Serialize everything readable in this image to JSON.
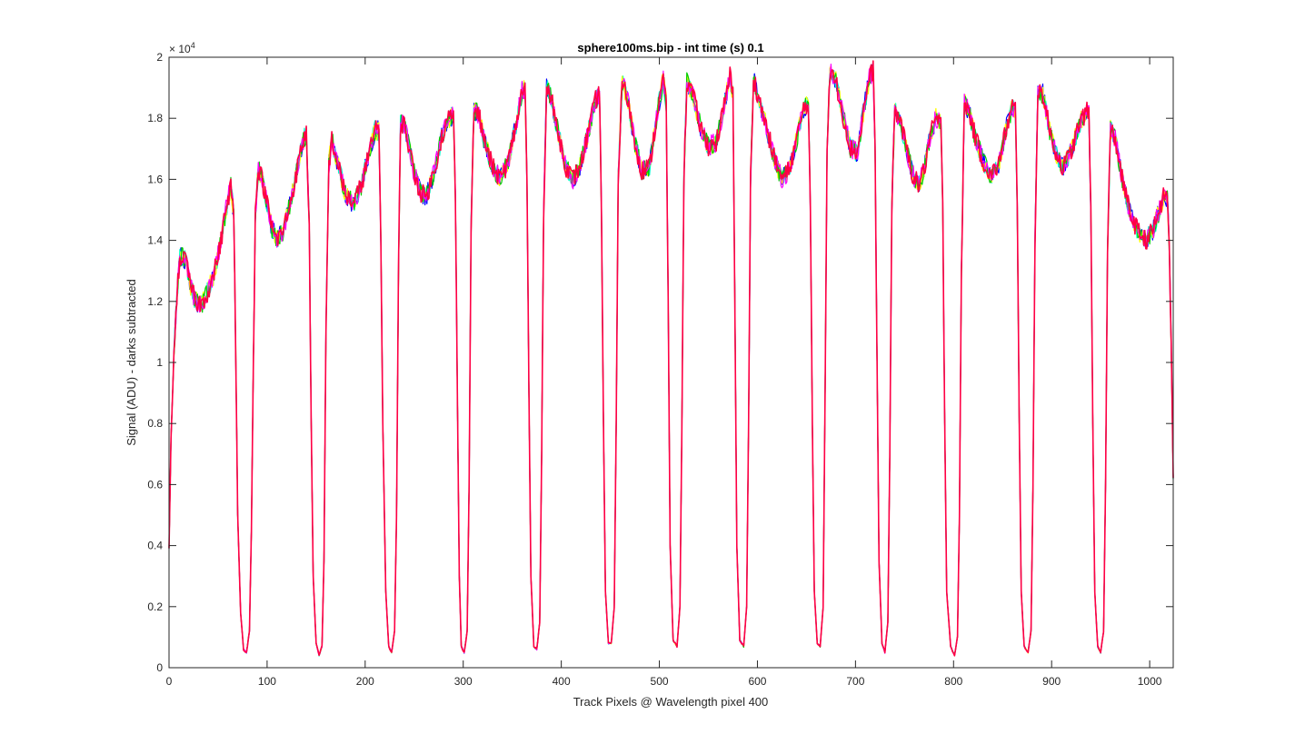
{
  "chart_data": {
    "type": "line",
    "title": "sphere100ms.bip - int time (s) 0.1",
    "xlabel": "Track Pixels @ Wavelength pixel 400",
    "ylabel": "Signal (ADU) - darks subtracted",
    "xlim": [
      0,
      1024
    ],
    "ylim": [
      0,
      20000
    ],
    "x_ticks": [
      0,
      100,
      200,
      300,
      400,
      500,
      600,
      700,
      800,
      900,
      1000
    ],
    "x_tick_labels": [
      "0",
      "100",
      "200",
      "300",
      "400",
      "500",
      "600",
      "700",
      "800",
      "900",
      "1000"
    ],
    "y_ticks": [
      0,
      2000,
      4000,
      6000,
      8000,
      10000,
      12000,
      14000,
      16000,
      18000,
      20000
    ],
    "y_tick_labels": [
      "0",
      "0.2",
      "0.4",
      "0.6",
      "0.8",
      "1",
      "1.2",
      "1.4",
      "1.6",
      "1.8",
      "2"
    ],
    "y_exponent_base": "× 10",
    "y_exponent_power": "4",
    "grid": false,
    "box": true,
    "series_colors": [
      "#0000ff",
      "#00ffcc",
      "#ffff00",
      "#00cc00",
      "#ff00ff",
      "#ff0044"
    ],
    "envelope": [
      [
        0,
        3900
      ],
      [
        2,
        7500
      ],
      [
        5,
        10200
      ],
      [
        8,
        12200
      ],
      [
        11,
        13400
      ],
      [
        14,
        13500
      ],
      [
        18,
        13200
      ],
      [
        22,
        12500
      ],
      [
        27,
        12000
      ],
      [
        33,
        11900
      ],
      [
        38,
        12200
      ],
      [
        45,
        12800
      ],
      [
        52,
        13800
      ],
      [
        58,
        15000
      ],
      [
        63,
        15800
      ],
      [
        66,
        14800
      ],
      [
        68,
        10500
      ],
      [
        70,
        5000
      ],
      [
        73,
        1800
      ],
      [
        76,
        600
      ],
      [
        79,
        500
      ],
      [
        82,
        1200
      ],
      [
        84,
        4500
      ],
      [
        86,
        10000
      ],
      [
        88,
        14800
      ],
      [
        91,
        16400
      ],
      [
        95,
        16000
      ],
      [
        100,
        15200
      ],
      [
        105,
        14400
      ],
      [
        110,
        14000
      ],
      [
        116,
        14300
      ],
      [
        122,
        15000
      ],
      [
        130,
        16200
      ],
      [
        136,
        17200
      ],
      [
        140,
        17500
      ],
      [
        143,
        14500
      ],
      [
        145,
        8000
      ],
      [
        147,
        3000
      ],
      [
        150,
        800
      ],
      [
        153,
        400
      ],
      [
        156,
        700
      ],
      [
        158,
        3500
      ],
      [
        160,
        11000
      ],
      [
        163,
        16500
      ],
      [
        166,
        17300
      ],
      [
        172,
        16500
      ],
      [
        180,
        15500
      ],
      [
        188,
        15200
      ],
      [
        196,
        15800
      ],
      [
        205,
        17000
      ],
      [
        210,
        17600
      ],
      [
        214,
        17600
      ],
      [
        216,
        14000
      ],
      [
        218,
        8000
      ],
      [
        221,
        2500
      ],
      [
        224,
        700
      ],
      [
        227,
        500
      ],
      [
        230,
        1200
      ],
      [
        232,
        5000
      ],
      [
        234,
        13000
      ],
      [
        236,
        17800
      ],
      [
        240,
        17800
      ],
      [
        245,
        17000
      ],
      [
        250,
        16200
      ],
      [
        256,
        15600
      ],
      [
        262,
        15400
      ],
      [
        270,
        16200
      ],
      [
        278,
        17400
      ],
      [
        285,
        18000
      ],
      [
        290,
        18100
      ],
      [
        292,
        15500
      ],
      [
        294,
        9000
      ],
      [
        296,
        3000
      ],
      [
        298,
        700
      ],
      [
        301,
        500
      ],
      [
        304,
        1200
      ],
      [
        306,
        6000
      ],
      [
        308,
        14500
      ],
      [
        311,
        18300
      ],
      [
        316,
        18100
      ],
      [
        322,
        17200
      ],
      [
        330,
        16400
      ],
      [
        338,
        16000
      ],
      [
        346,
        16600
      ],
      [
        354,
        17800
      ],
      [
        360,
        18900
      ],
      [
        363,
        19000
      ],
      [
        365,
        16000
      ],
      [
        367,
        9000
      ],
      [
        369,
        3000
      ],
      [
        372,
        700
      ],
      [
        375,
        600
      ],
      [
        378,
        1500
      ],
      [
        380,
        7000
      ],
      [
        382,
        15000
      ],
      [
        385,
        19000
      ],
      [
        390,
        18600
      ],
      [
        397,
        17500
      ],
      [
        405,
        16400
      ],
      [
        412,
        16000
      ],
      [
        420,
        16500
      ],
      [
        428,
        17600
      ],
      [
        435,
        18600
      ],
      [
        439,
        18800
      ],
      [
        441,
        15000
      ],
      [
        443,
        8000
      ],
      [
        445,
        2500
      ],
      [
        448,
        800
      ],
      [
        451,
        800
      ],
      [
        454,
        2000
      ],
      [
        456,
        8000
      ],
      [
        458,
        16000
      ],
      [
        462,
        19200
      ],
      [
        468,
        18600
      ],
      [
        475,
        17200
      ],
      [
        482,
        16300
      ],
      [
        490,
        16400
      ],
      [
        498,
        18200
      ],
      [
        504,
        19300
      ],
      [
        507,
        18500
      ],
      [
        509,
        12000
      ],
      [
        511,
        4000
      ],
      [
        514,
        900
      ],
      [
        518,
        700
      ],
      [
        521,
        2000
      ],
      [
        523,
        8000
      ],
      [
        525,
        16000
      ],
      [
        528,
        19200
      ],
      [
        534,
        18800
      ],
      [
        542,
        17700
      ],
      [
        550,
        17100
      ],
      [
        558,
        17200
      ],
      [
        565,
        18200
      ],
      [
        572,
        19400
      ],
      [
        575,
        18800
      ],
      [
        577,
        12000
      ],
      [
        579,
        4000
      ],
      [
        582,
        900
      ],
      [
        586,
        700
      ],
      [
        589,
        2000
      ],
      [
        591,
        8000
      ],
      [
        593,
        16000
      ],
      [
        596,
        19300
      ],
      [
        602,
        18600
      ],
      [
        610,
        17600
      ],
      [
        618,
        16600
      ],
      [
        625,
        16000
      ],
      [
        632,
        16300
      ],
      [
        640,
        17300
      ],
      [
        647,
        18300
      ],
      [
        652,
        18500
      ],
      [
        654,
        15000
      ],
      [
        656,
        8000
      ],
      [
        658,
        2500
      ],
      [
        661,
        800
      ],
      [
        664,
        700
      ],
      [
        667,
        2000
      ],
      [
        669,
        9000
      ],
      [
        671,
        17000
      ],
      [
        674,
        19500
      ],
      [
        680,
        19200
      ],
      [
        688,
        18000
      ],
      [
        695,
        17000
      ],
      [
        702,
        16900
      ],
      [
        708,
        18200
      ],
      [
        714,
        19300
      ],
      [
        718,
        19600
      ],
      [
        720,
        17000
      ],
      [
        722,
        10000
      ],
      [
        724,
        3500
      ],
      [
        727,
        800
      ],
      [
        730,
        500
      ],
      [
        733,
        1500
      ],
      [
        735,
        7000
      ],
      [
        737,
        15000
      ],
      [
        740,
        18300
      ],
      [
        745,
        18000
      ],
      [
        752,
        17000
      ],
      [
        758,
        16200
      ],
      [
        764,
        15800
      ],
      [
        770,
        16300
      ],
      [
        776,
        17400
      ],
      [
        782,
        18000
      ],
      [
        787,
        17800
      ],
      [
        789,
        15000
      ],
      [
        791,
        8000
      ],
      [
        793,
        2500
      ],
      [
        797,
        700
      ],
      [
        801,
        400
      ],
      [
        804,
        1000
      ],
      [
        806,
        5000
      ],
      [
        808,
        13000
      ],
      [
        811,
        18500
      ],
      [
        816,
        18200
      ],
      [
        822,
        17400
      ],
      [
        830,
        16600
      ],
      [
        838,
        16100
      ],
      [
        846,
        16500
      ],
      [
        854,
        17700
      ],
      [
        860,
        18400
      ],
      [
        863,
        18300
      ],
      [
        865,
        15000
      ],
      [
        867,
        8000
      ],
      [
        869,
        2500
      ],
      [
        872,
        700
      ],
      [
        876,
        500
      ],
      [
        879,
        1200
      ],
      [
        881,
        6000
      ],
      [
        883,
        14000
      ],
      [
        886,
        18900
      ],
      [
        891,
        18800
      ],
      [
        898,
        17600
      ],
      [
        905,
        16800
      ],
      [
        912,
        16400
      ],
      [
        920,
        16900
      ],
      [
        928,
        17800
      ],
      [
        935,
        18200
      ],
      [
        938,
        18200
      ],
      [
        940,
        15000
      ],
      [
        942,
        8000
      ],
      [
        944,
        2500
      ],
      [
        947,
        700
      ],
      [
        950,
        500
      ],
      [
        953,
        1200
      ],
      [
        955,
        6000
      ],
      [
        957,
        13500
      ],
      [
        960,
        17700
      ],
      [
        965,
        17300
      ],
      [
        972,
        16000
      ],
      [
        980,
        14900
      ],
      [
        988,
        14300
      ],
      [
        996,
        14000
      ],
      [
        1003,
        14300
      ],
      [
        1010,
        15000
      ],
      [
        1015,
        15500
      ],
      [
        1018,
        15400
      ],
      [
        1020,
        13800
      ],
      [
        1022,
        10500
      ],
      [
        1024,
        6200
      ]
    ]
  }
}
